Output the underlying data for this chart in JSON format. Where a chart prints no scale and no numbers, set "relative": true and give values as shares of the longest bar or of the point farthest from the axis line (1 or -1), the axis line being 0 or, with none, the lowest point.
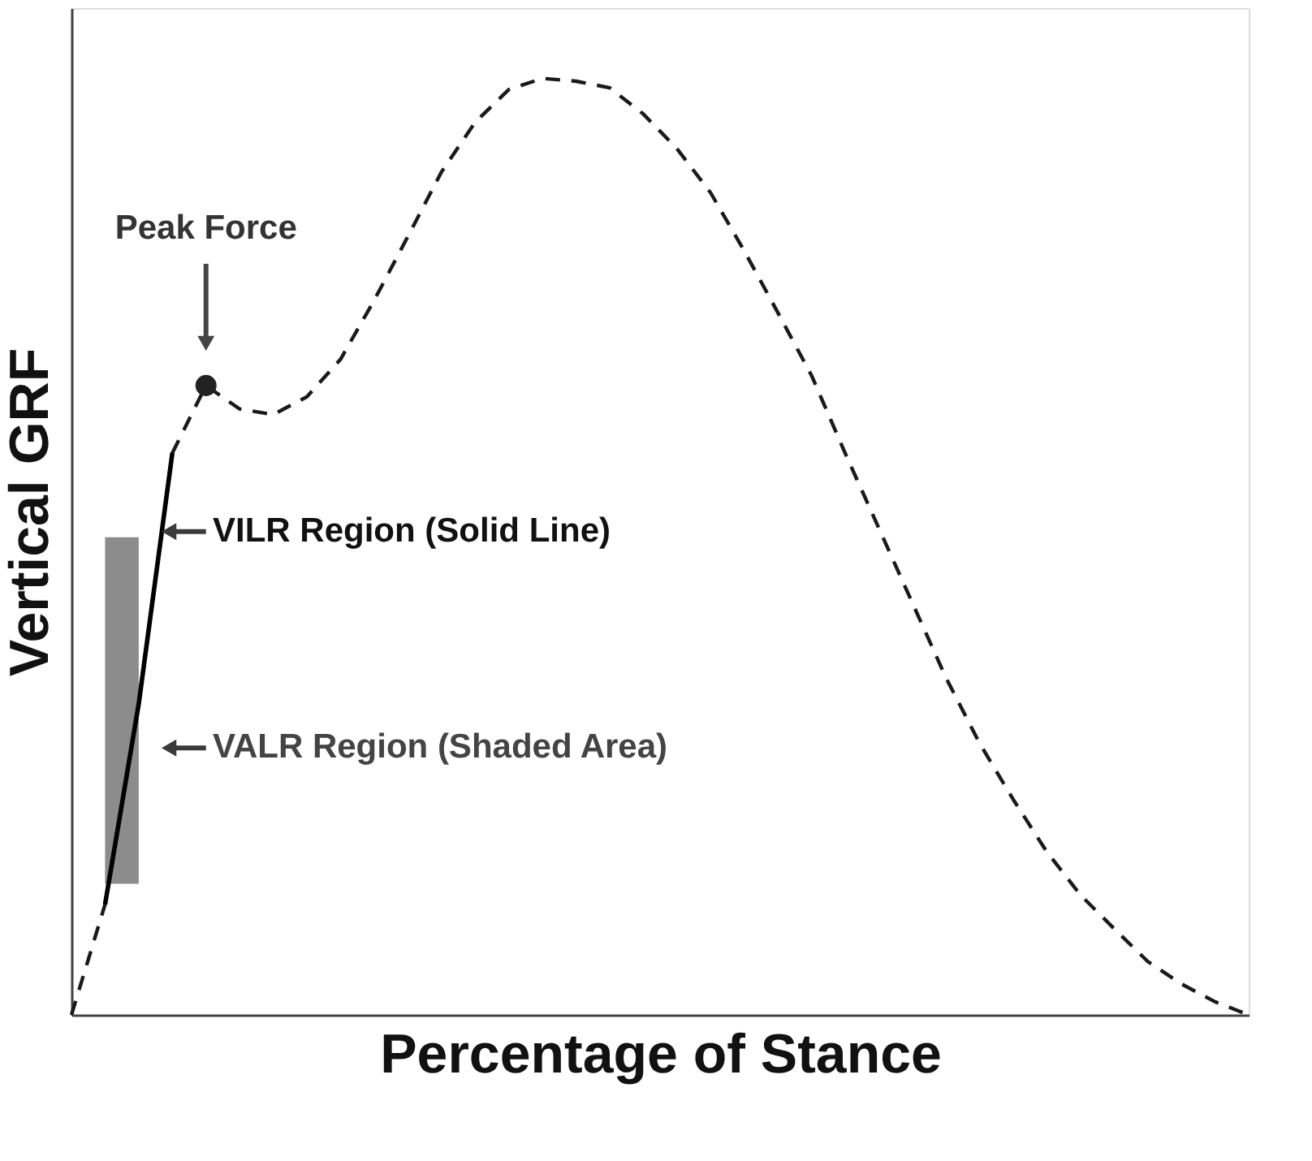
{
  "chart_data": {
    "type": "line",
    "relative": true,
    "xlabel": "Percentage of Stance",
    "ylabel": "Vertical GRF",
    "tick_labels": false,
    "grid": false,
    "categories": [
      null,
      null,
      null,
      null,
      null,
      null,
      null,
      null,
      null,
      null,
      null,
      null,
      null,
      null,
      null,
      null,
      null,
      null,
      null,
      null,
      null,
      null,
      null,
      null,
      null,
      null,
      null,
      null,
      null,
      null,
      null,
      null,
      null,
      null,
      null,
      null
    ],
    "series": [
      {
        "line_style": "dashed",
        "color": "#1a1a1a",
        "values": [
          0,
          0.118,
          0.332,
          0.6,
          0.672,
          0.647,
          0.641,
          0.66,
          0.7,
          0.763,
          0.831,
          0.9,
          0.953,
          0.988,
          1,
          0.997,
          0.99,
          0.962,
          0.925,
          0.878,
          0.816,
          0.75,
          0.683,
          0.6,
          0.52,
          0.44,
          0.36,
          0.29,
          0.23,
          0.174,
          0.128,
          0.092,
          0.057,
          0.033,
          0.014,
          0
        ]
      },
      {
        "line_style": "solid",
        "color": "#000000",
        "values": [
          null,
          0.118,
          0.332,
          0.6,
          null,
          null,
          null,
          null,
          null,
          null,
          null,
          null,
          null,
          null,
          null,
          null,
          null,
          null,
          null,
          null,
          null,
          null,
          null,
          null,
          null,
          null,
          null,
          null,
          null,
          null,
          null,
          null,
          null,
          null,
          null,
          null
        ],
        "lower": [
          null,
          0.14,
          0.14,
          null,
          null,
          null,
          null,
          null,
          null,
          null,
          null,
          null,
          null,
          null,
          null,
          null,
          null,
          null,
          null,
          null,
          null,
          null,
          null,
          null,
          null,
          null,
          null,
          null,
          null,
          null,
          null,
          null,
          null,
          null,
          null,
          null
        ],
        "upper": [
          null,
          0.51,
          0.51,
          null,
          null,
          null,
          null,
          null,
          null,
          null,
          null,
          null,
          null,
          null,
          null,
          null,
          null,
          null,
          null,
          null,
          null,
          null,
          null,
          null,
          null,
          null,
          null,
          null,
          null,
          null,
          null,
          null,
          null,
          null,
          null,
          null
        ]
      }
    ],
    "annotations": [
      "Peak Force",
      "VILR Region (Solid Line)",
      "VALR Region (Shaded Area)"
    ]
  }
}
